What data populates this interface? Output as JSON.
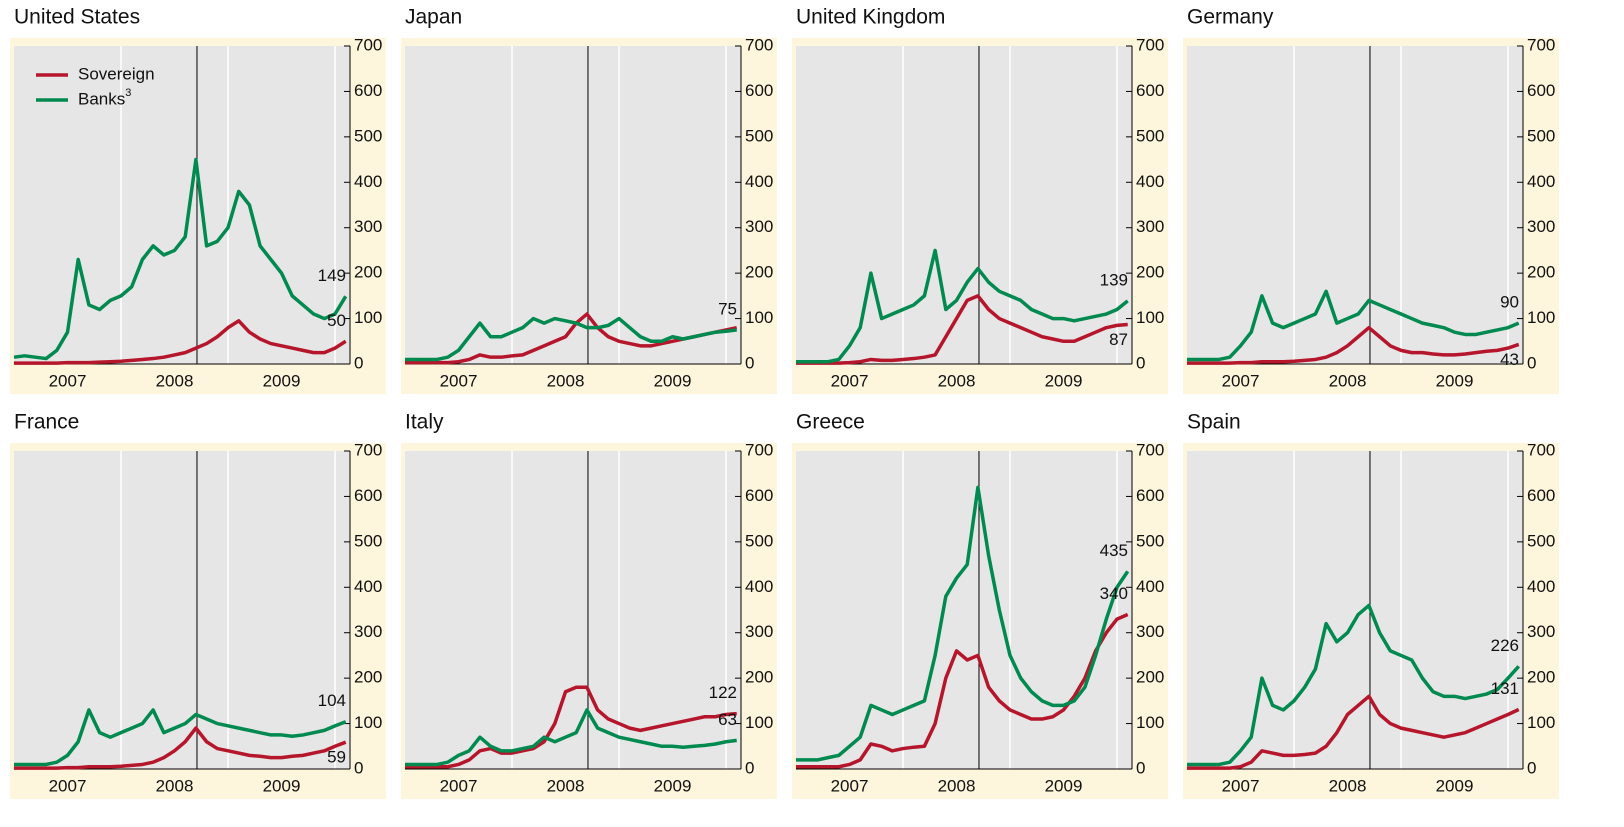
{
  "chart_data": [
    {
      "type": "line",
      "title": "United States",
      "legend": true,
      "series": [
        {
          "name": "Sovereign",
          "color": "#b5162b",
          "values": [
            2,
            2,
            2,
            2,
            2,
            3,
            3,
            3,
            4,
            5,
            6,
            8,
            10,
            12,
            15,
            20,
            25,
            35,
            45,
            60,
            80,
            95,
            70,
            55,
            45,
            40,
            35,
            30,
            25,
            25,
            35,
            50
          ]
        },
        {
          "name": "Banks",
          "name_sup": "3",
          "color": "#008a50",
          "values": [
            15,
            18,
            15,
            12,
            30,
            70,
            230,
            130,
            120,
            140,
            150,
            170,
            230,
            260,
            240,
            250,
            280,
            450,
            260,
            270,
            300,
            380,
            350,
            260,
            230,
            200,
            150,
            130,
            110,
            100,
            110,
            149
          ]
        }
      ],
      "end_labels": [
        50,
        149
      ]
    },
    {
      "type": "line",
      "title": "Japan",
      "series": [
        {
          "color": "#b5162b",
          "values": [
            3,
            3,
            3,
            3,
            3,
            5,
            10,
            20,
            15,
            15,
            18,
            20,
            30,
            40,
            50,
            60,
            90,
            110,
            80,
            60,
            50,
            45,
            40,
            40,
            45,
            50,
            55,
            60,
            65,
            70,
            75,
            80
          ]
        },
        {
          "color": "#008a50",
          "values": [
            10,
            10,
            10,
            10,
            15,
            30,
            60,
            90,
            60,
            60,
            70,
            80,
            100,
            90,
            100,
            95,
            90,
            80,
            80,
            85,
            100,
            80,
            60,
            50,
            50,
            60,
            55,
            60,
            65,
            70,
            72,
            75
          ]
        }
      ],
      "end_labels": [
        null,
        75
      ]
    },
    {
      "type": "line",
      "title": "United Kingdom",
      "series": [
        {
          "color": "#b5162b",
          "values": [
            2,
            2,
            2,
            2,
            2,
            3,
            5,
            10,
            8,
            8,
            10,
            12,
            15,
            20,
            60,
            100,
            140,
            150,
            120,
            100,
            90,
            80,
            70,
            60,
            55,
            50,
            50,
            60,
            70,
            80,
            85,
            87
          ]
        },
        {
          "color": "#008a50",
          "values": [
            5,
            5,
            5,
            5,
            10,
            40,
            80,
            200,
            100,
            110,
            120,
            130,
            150,
            250,
            120,
            140,
            180,
            210,
            180,
            160,
            150,
            140,
            120,
            110,
            100,
            100,
            95,
            100,
            105,
            110,
            120,
            139
          ]
        }
      ],
      "end_labels": [
        87,
        139
      ]
    },
    {
      "type": "line",
      "title": "Germany",
      "series": [
        {
          "color": "#b5162b",
          "values": [
            2,
            2,
            2,
            2,
            2,
            3,
            3,
            5,
            5,
            5,
            6,
            8,
            10,
            15,
            25,
            40,
            60,
            80,
            60,
            40,
            30,
            25,
            25,
            22,
            20,
            20,
            22,
            25,
            28,
            30,
            35,
            43
          ]
        },
        {
          "color": "#008a50",
          "values": [
            10,
            10,
            10,
            10,
            15,
            40,
            70,
            150,
            90,
            80,
            90,
            100,
            110,
            160,
            90,
            100,
            110,
            140,
            130,
            120,
            110,
            100,
            90,
            85,
            80,
            70,
            65,
            65,
            70,
            75,
            80,
            90
          ]
        }
      ],
      "end_labels": [
        43,
        90
      ]
    },
    {
      "type": "line",
      "title": "France",
      "series": [
        {
          "color": "#b5162b",
          "values": [
            2,
            2,
            2,
            2,
            2,
            3,
            3,
            5,
            5,
            5,
            6,
            8,
            10,
            15,
            25,
            40,
            60,
            90,
            60,
            45,
            40,
            35,
            30,
            28,
            25,
            25,
            28,
            30,
            35,
            40,
            50,
            59
          ]
        },
        {
          "color": "#008a50",
          "values": [
            10,
            10,
            10,
            10,
            15,
            30,
            60,
            130,
            80,
            70,
            80,
            90,
            100,
            130,
            80,
            90,
            100,
            120,
            110,
            100,
            95,
            90,
            85,
            80,
            75,
            75,
            72,
            75,
            80,
            85,
            95,
            104
          ]
        }
      ],
      "end_labels": [
        59,
        104
      ]
    },
    {
      "type": "line",
      "title": "Italy",
      "series": [
        {
          "color": "#b5162b",
          "values": [
            5,
            5,
            5,
            5,
            5,
            10,
            20,
            40,
            45,
            35,
            35,
            40,
            45,
            60,
            100,
            170,
            180,
            180,
            130,
            110,
            100,
            90,
            85,
            90,
            95,
            100,
            105,
            110,
            115,
            115,
            120,
            122
          ]
        },
        {
          "color": "#008a50",
          "values": [
            10,
            10,
            10,
            10,
            15,
            30,
            40,
            70,
            50,
            40,
            40,
            45,
            50,
            70,
            60,
            70,
            80,
            130,
            90,
            80,
            70,
            65,
            60,
            55,
            50,
            50,
            48,
            50,
            52,
            55,
            60,
            63
          ]
        }
      ],
      "end_labels": [
        122,
        63
      ]
    },
    {
      "type": "line",
      "title": "Greece",
      "series": [
        {
          "color": "#b5162b",
          "values": [
            5,
            5,
            5,
            5,
            5,
            10,
            20,
            55,
            50,
            40,
            45,
            48,
            50,
            100,
            200,
            260,
            240,
            250,
            180,
            150,
            130,
            120,
            110,
            110,
            115,
            130,
            160,
            200,
            260,
            300,
            330,
            340
          ]
        },
        {
          "color": "#008a50",
          "values": [
            20,
            20,
            20,
            25,
            30,
            50,
            70,
            140,
            130,
            120,
            130,
            140,
            150,
            250,
            380,
            420,
            450,
            620,
            470,
            350,
            250,
            200,
            170,
            150,
            140,
            140,
            150,
            180,
            250,
            330,
            400,
            435
          ]
        }
      ],
      "end_labels": [
        340,
        435
      ]
    },
    {
      "type": "line",
      "title": "Spain",
      "series": [
        {
          "color": "#b5162b",
          "values": [
            2,
            2,
            2,
            2,
            2,
            5,
            15,
            40,
            35,
            30,
            30,
            32,
            35,
            50,
            80,
            120,
            140,
            160,
            120,
            100,
            90,
            85,
            80,
            75,
            70,
            75,
            80,
            90,
            100,
            110,
            120,
            131
          ]
        },
        {
          "color": "#008a50",
          "values": [
            10,
            10,
            10,
            10,
            15,
            40,
            70,
            200,
            140,
            130,
            150,
            180,
            220,
            320,
            280,
            300,
            340,
            360,
            300,
            260,
            250,
            240,
            200,
            170,
            160,
            160,
            155,
            160,
            165,
            175,
            200,
            226
          ]
        }
      ],
      "end_labels": [
        131,
        226
      ]
    }
  ],
  "x": [
    2007.0,
    2007.1,
    2007.2,
    2007.3,
    2007.4,
    2007.5,
    2007.6,
    2007.7,
    2007.8,
    2007.9,
    2008.0,
    2008.1,
    2008.2,
    2008.3,
    2008.4,
    2008.5,
    2008.6,
    2008.7,
    2008.8,
    2008.9,
    2009.0,
    2009.1,
    2009.2,
    2009.3,
    2009.4,
    2009.5,
    2009.6,
    2009.7,
    2009.8,
    2009.9,
    2010.0,
    2010.1
  ],
  "xlim": [
    2007,
    2010.14
  ],
  "xticks": [
    {
      "value": 2007.5,
      "label": "2007"
    },
    {
      "value": 2008.5,
      "label": "2008"
    },
    {
      "value": 2009.5,
      "label": "2009"
    }
  ],
  "xgrid": [
    2008,
    2009,
    2010
  ],
  "event_line": 2008.71,
  "ylim": [
    0,
    700
  ],
  "yticks": [
    0,
    100,
    200,
    300,
    400,
    500,
    600,
    700
  ]
}
